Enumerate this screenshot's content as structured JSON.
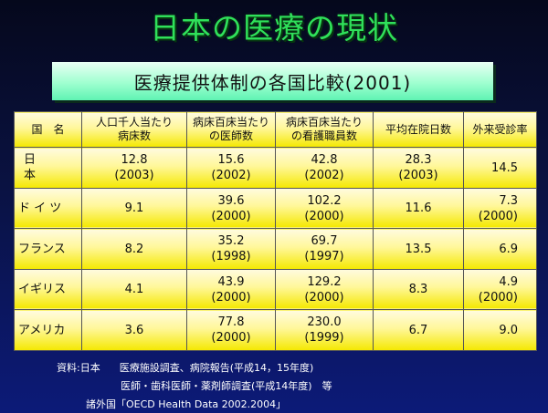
{
  "title": "日本の医療の現状",
  "subtitle": "医療提供体制の各国比較(2001)",
  "table": {
    "headers": [
      [
        "国　名"
      ],
      [
        "人口千人当たり",
        "病床数"
      ],
      [
        "病床百床当たり",
        "の医師数"
      ],
      [
        "病床百床当たり",
        "の看護職員数"
      ],
      [
        "平均在院日数"
      ],
      [
        "外来受診率"
      ]
    ],
    "rows": [
      {
        "country": "日　本",
        "cells": [
          [
            "12.8",
            "(2003)"
          ],
          [
            "15.6",
            "(2002)"
          ],
          [
            "42.8",
            "(2002)"
          ],
          [
            "28.3",
            "(2003)"
          ],
          [
            "14.5"
          ]
        ]
      },
      {
        "country": "ド イ ツ",
        "cells": [
          [
            "9.1"
          ],
          [
            "39.6",
            "(2000)"
          ],
          [
            "102.2",
            "(2000)"
          ],
          [
            "11.6"
          ],
          [
            "7.3",
            "(2000)"
          ]
        ]
      },
      {
        "country": "フランス",
        "cells": [
          [
            "8.2"
          ],
          [
            "35.2",
            "(1998)"
          ],
          [
            "69.7",
            "(1997)"
          ],
          [
            "13.5"
          ],
          [
            "6.9"
          ]
        ]
      },
      {
        "country": "イギリス",
        "cells": [
          [
            "4.1"
          ],
          [
            "43.9",
            "(2000)"
          ],
          [
            "129.2",
            "(2000)"
          ],
          [
            "8.3"
          ],
          [
            "4.9",
            "(2000)"
          ]
        ]
      },
      {
        "country": "アメリカ",
        "cells": [
          [
            "3.6"
          ],
          [
            "77.8",
            "(2000)"
          ],
          [
            "230.0",
            "(1999)"
          ],
          [
            "6.7"
          ],
          [
            "9.0"
          ]
        ]
      }
    ]
  },
  "notes": {
    "line1_label": "資料:日本",
    "line1_text": "医療施設調査、病院報告(平成14，15年度)",
    "line2_text": "医師・歯科医師・薬剤師調査(平成14年度)　等",
    "line3_text": "諸外国「OECD Health Data 2002.2004」"
  }
}
